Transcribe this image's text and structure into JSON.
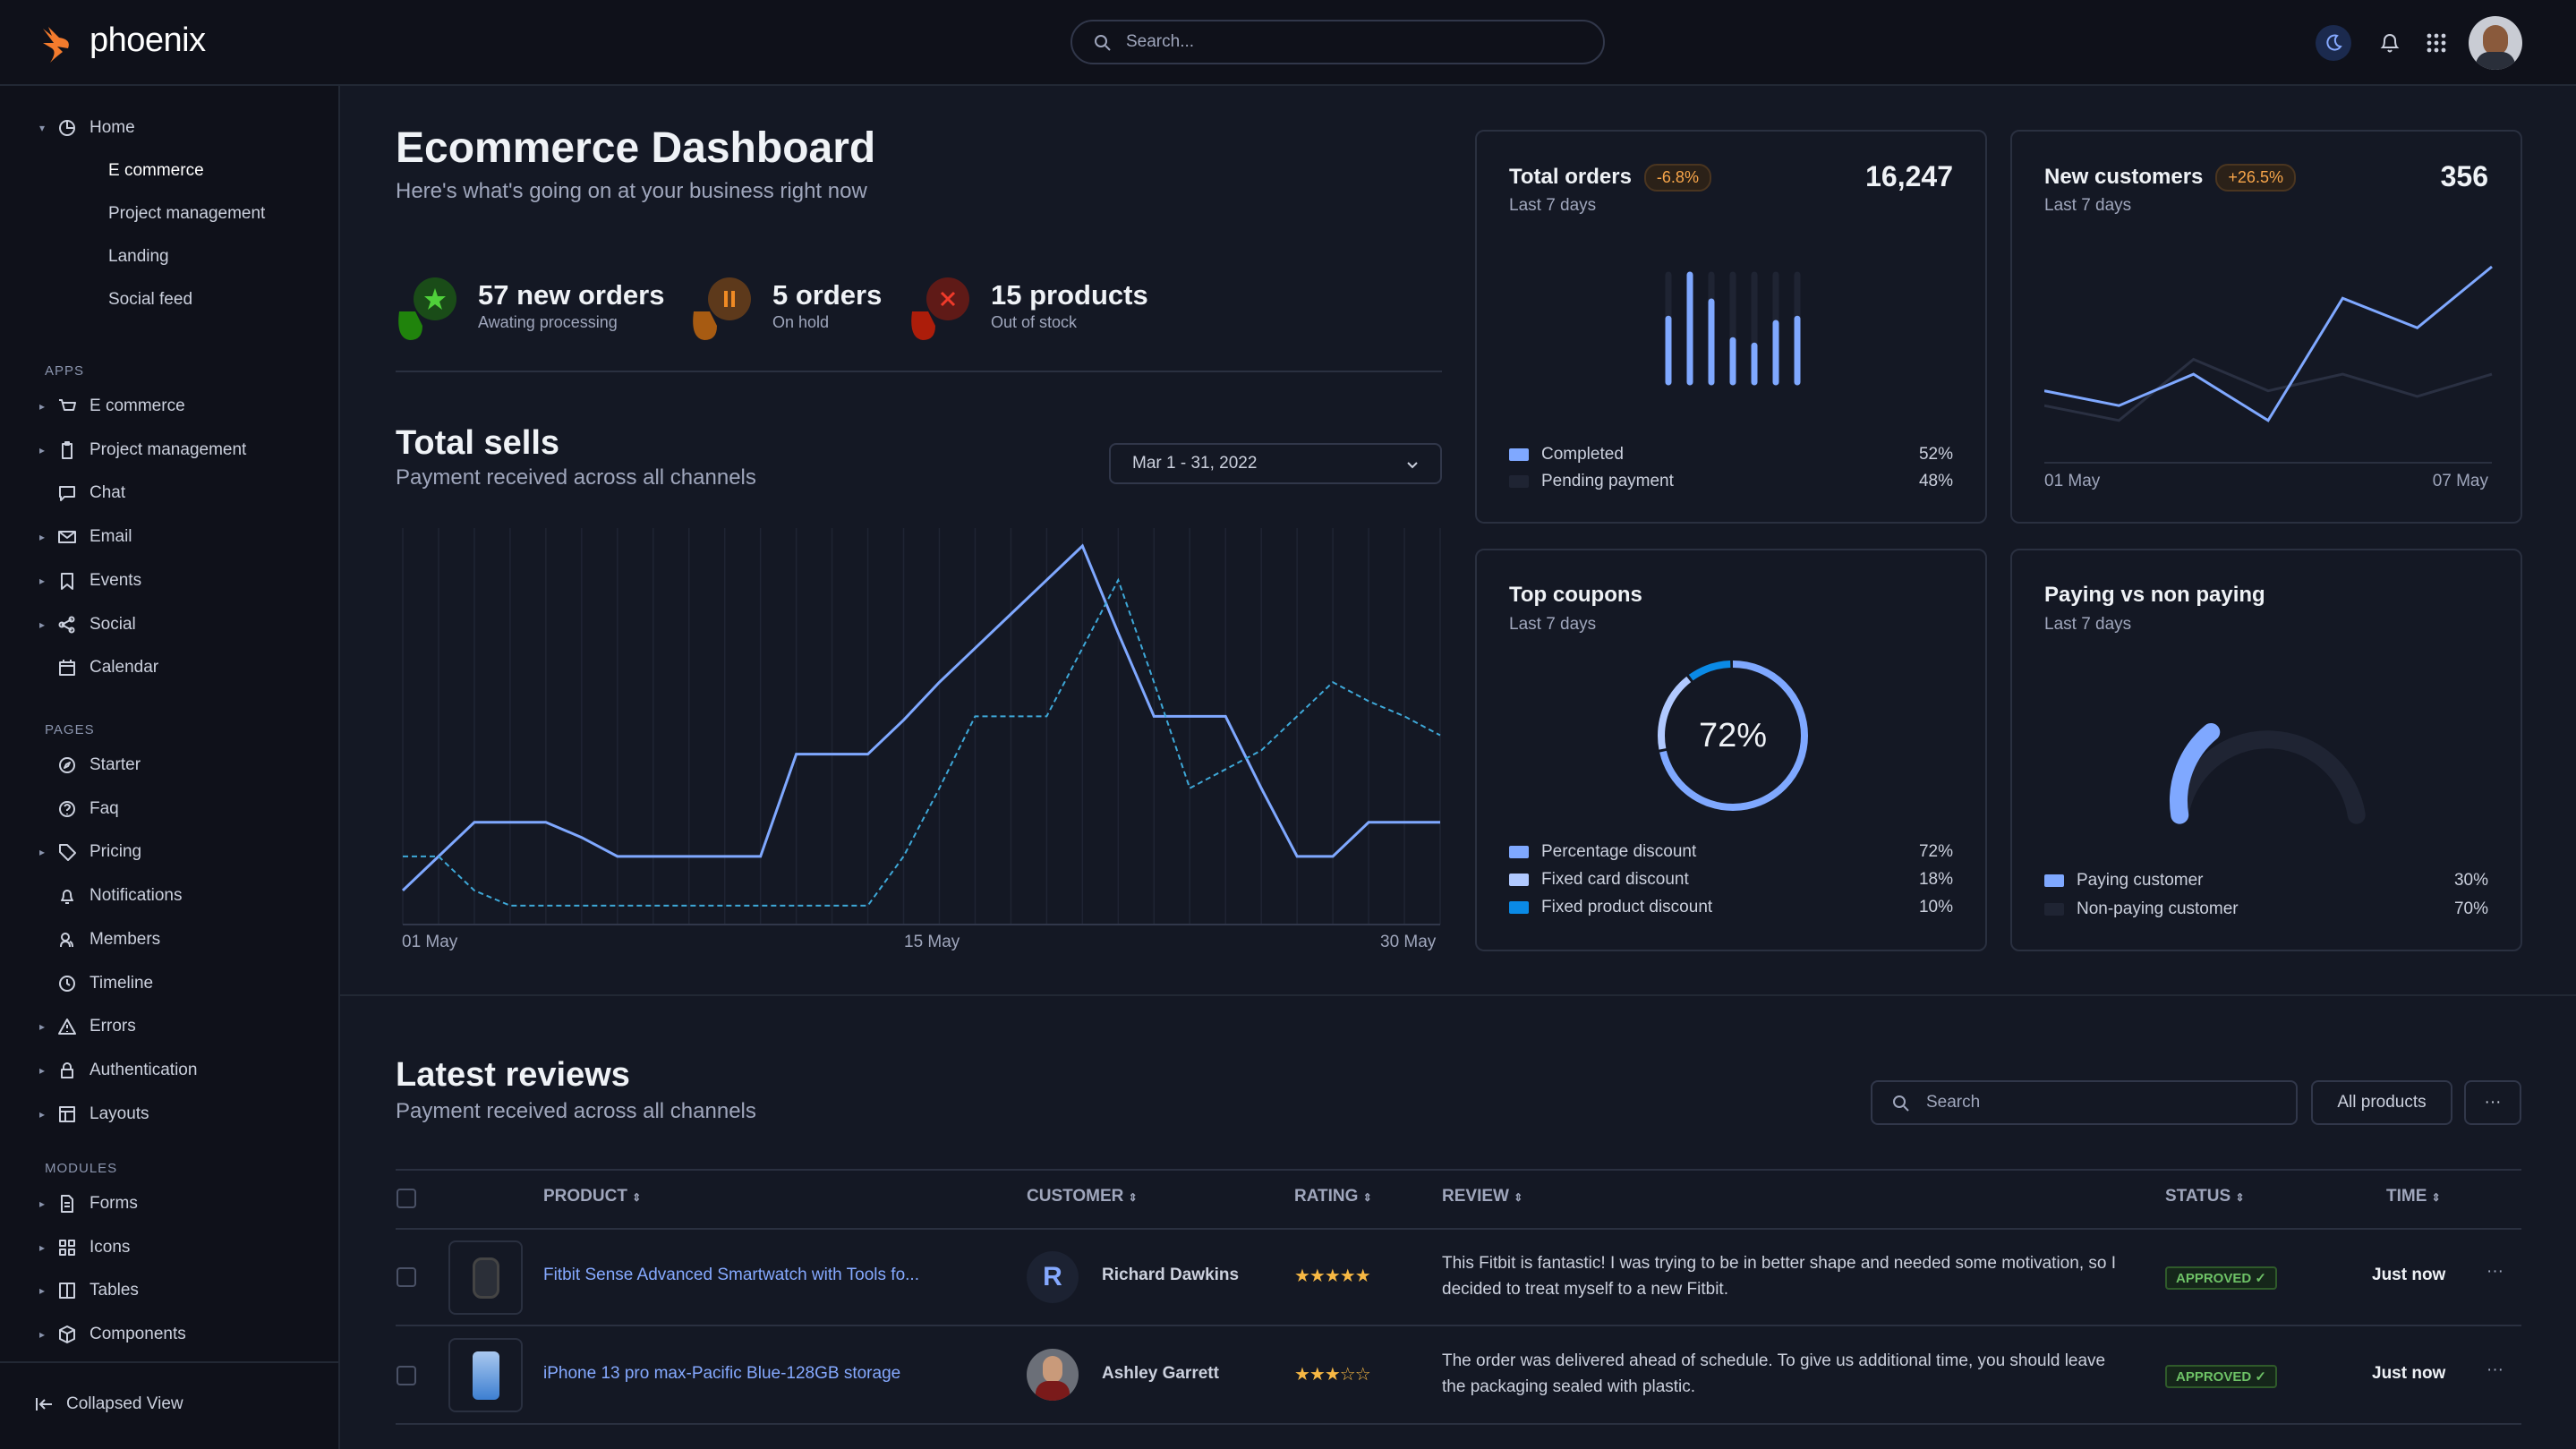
{
  "brand": {
    "name": "phoenix",
    "accent": "#f37b2d"
  },
  "topnav": {
    "search_placeholder": "Search...",
    "icons": [
      "moon-icon",
      "bell-icon",
      "apps-grid-icon",
      "user-avatar"
    ]
  },
  "sidebar": {
    "home": {
      "label": "Home",
      "children": [
        "E commerce",
        "Project management",
        "Landing",
        "Social feed"
      ],
      "active": "E commerce"
    },
    "sections": [
      {
        "title": "APPS",
        "items": [
          {
            "label": "E commerce",
            "icon": "cart-icon",
            "expandable": true
          },
          {
            "label": "Project management",
            "icon": "clipboard-icon",
            "expandable": true
          },
          {
            "label": "Chat",
            "icon": "chat-icon",
            "expandable": false
          },
          {
            "label": "Email",
            "icon": "mail-icon",
            "expandable": true
          },
          {
            "label": "Events",
            "icon": "bookmark-icon",
            "expandable": true
          },
          {
            "label": "Social",
            "icon": "share-icon",
            "expandable": true
          },
          {
            "label": "Calendar",
            "icon": "calendar-icon",
            "expandable": false
          }
        ]
      },
      {
        "title": "PAGES",
        "items": [
          {
            "label": "Starter",
            "icon": "compass-icon",
            "expandable": false
          },
          {
            "label": "Faq",
            "icon": "help-icon",
            "expandable": false
          },
          {
            "label": "Pricing",
            "icon": "tag-icon",
            "expandable": true
          },
          {
            "label": "Notifications",
            "icon": "bell-icon",
            "expandable": false
          },
          {
            "label": "Members",
            "icon": "users-icon",
            "expandable": false
          },
          {
            "label": "Timeline",
            "icon": "clock-icon",
            "expandable": false
          },
          {
            "label": "Errors",
            "icon": "alert-icon",
            "expandable": true
          },
          {
            "label": "Authentication",
            "icon": "lock-icon",
            "expandable": true
          },
          {
            "label": "Layouts",
            "icon": "layout-icon",
            "expandable": true
          }
        ]
      },
      {
        "title": "MODULES",
        "items": [
          {
            "label": "Forms",
            "icon": "file-icon",
            "expandable": true
          },
          {
            "label": "Icons",
            "icon": "grid-icon",
            "expandable": true
          },
          {
            "label": "Tables",
            "icon": "columns-icon",
            "expandable": true
          },
          {
            "label": "Components",
            "icon": "package-icon",
            "expandable": true
          }
        ]
      }
    ],
    "collapse_label": "Collapsed View"
  },
  "header": {
    "title": "Ecommerce Dashboard",
    "subtitle": "Here's what's going on at your business right now"
  },
  "stats": [
    {
      "value": "57 new orders",
      "label": "Awating processing",
      "color": "#25b003"
    },
    {
      "value": "5 orders",
      "label": "On hold",
      "color": "#e5780b"
    },
    {
      "value": "15 products",
      "label": "Out of stock",
      "color": "#ec1f00"
    }
  ],
  "total_sells": {
    "title": "Total sells",
    "subtitle": "Payment received across all channels",
    "date_range": "Mar 1 - 31, 2022"
  },
  "cards": {
    "total_orders": {
      "title": "Total orders",
      "badge": "-6.8%",
      "value": "16,247",
      "subtitle": "Last 7 days",
      "legend": [
        {
          "label": "Completed",
          "value": "52%",
          "color": "#7fa8ff"
        },
        {
          "label": "Pending payment",
          "value": "48%",
          "color": "#1f2433"
        }
      ]
    },
    "new_customers": {
      "title": "New customers",
      "badge": "+26.5%",
      "value": "356",
      "subtitle": "Last 7 days",
      "x_start": "01 May",
      "x_end": "07 May"
    },
    "top_coupons": {
      "title": "Top coupons",
      "subtitle": "Last 7 days",
      "center": "72%",
      "legend": [
        {
          "label": "Percentage discount",
          "value": "72%",
          "color": "#7fa8ff"
        },
        {
          "label": "Fixed card discount",
          "value": "18%",
          "color": "#b1c9ff"
        },
        {
          "label": "Fixed product discount",
          "value": "10%",
          "color": "#0a8ae6"
        }
      ]
    },
    "paying": {
      "title": "Paying vs non paying",
      "subtitle": "Last 7 days",
      "legend": [
        {
          "label": "Paying customer",
          "value": "30%",
          "color": "#7fa8ff"
        },
        {
          "label": "Non-paying customer",
          "value": "70%",
          "color": "#1f2433"
        }
      ]
    }
  },
  "chart_data": [
    {
      "type": "line",
      "name": "total-sells",
      "x_labels": [
        "01 May",
        "15 May",
        "30 May"
      ],
      "x": [
        1,
        2,
        3,
        4,
        5,
        6,
        7,
        8,
        9,
        10,
        11,
        12,
        13,
        14,
        15,
        16,
        17,
        18,
        19,
        20,
        21,
        22,
        23,
        24,
        25,
        26,
        27,
        28,
        29,
        30
      ],
      "series": [
        {
          "style": "solid",
          "color": "#7fa8ff",
          "values": [
            9,
            18,
            27,
            27,
            27,
            23,
            18,
            18,
            18,
            18,
            18,
            45,
            45,
            45,
            54,
            64,
            73,
            82,
            91,
            100,
            77,
            55,
            55,
            55,
            36,
            18,
            18,
            27,
            27,
            27
          ]
        },
        {
          "style": "dashed",
          "color": "#3ea8d8",
          "values": [
            18,
            18,
            9,
            5,
            5,
            5,
            5,
            5,
            5,
            5,
            5,
            5,
            5,
            5,
            18,
            36,
            55,
            55,
            55,
            73,
            91,
            64,
            36,
            41,
            46,
            55,
            64,
            59,
            55,
            50
          ]
        }
      ],
      "grid": "vertical"
    },
    {
      "type": "bar",
      "name": "total-orders",
      "values": [
        59,
        100,
        75,
        39,
        34,
        55,
        59
      ],
      "color": "#7fa8ff"
    },
    {
      "type": "line",
      "name": "new-customers",
      "x_labels": [
        "01 May",
        "07 May"
      ],
      "series": [
        {
          "color": "#7fa8ff",
          "values": [
            33,
            25,
            42,
            17,
            83,
            67,
            100
          ]
        },
        {
          "color": "#2a3042",
          "values": [
            25,
            17,
            50,
            33,
            42,
            30,
            42
          ]
        }
      ]
    },
    {
      "type": "pie",
      "name": "top-coupons",
      "values": [
        72,
        18,
        10
      ],
      "colors": [
        "#7fa8ff",
        "#b1c9ff",
        "#0a8ae6"
      ]
    },
    {
      "type": "pie",
      "name": "paying-gauge",
      "values": [
        30,
        70
      ],
      "colors": [
        "#7fa8ff",
        "#1f2433"
      ]
    }
  ],
  "reviews": {
    "title": "Latest reviews",
    "subtitle": "Payment received across all channels",
    "search_placeholder": "Search",
    "filter_label": "All products",
    "more_label": "···",
    "columns": [
      "PRODUCT",
      "CUSTOMER",
      "RATING",
      "REVIEW",
      "STATUS",
      "TIME"
    ],
    "rows": [
      {
        "product": "Fitbit Sense Advanced Smartwatch with Tools fo...",
        "customer": "Richard Dawkins",
        "initial": "R",
        "rating": 5,
        "stars": "★★★★★",
        "review": "This Fitbit is fantastic! I was trying to be in better shape and needed some motivation, so I decided to treat myself to a new Fitbit.",
        "status": "APPROVED ✓",
        "time": "Just now"
      },
      {
        "product": "iPhone 13 pro max-Pacific Blue-128GB storage",
        "customer": "Ashley Garrett",
        "initial": "",
        "rating": 3,
        "stars": "★★★☆☆",
        "review": "The order was delivered ahead of schedule. To give us additional time, you should leave the packaging sealed with plastic.",
        "status": "APPROVED ✓",
        "time": "Just now"
      }
    ]
  }
}
